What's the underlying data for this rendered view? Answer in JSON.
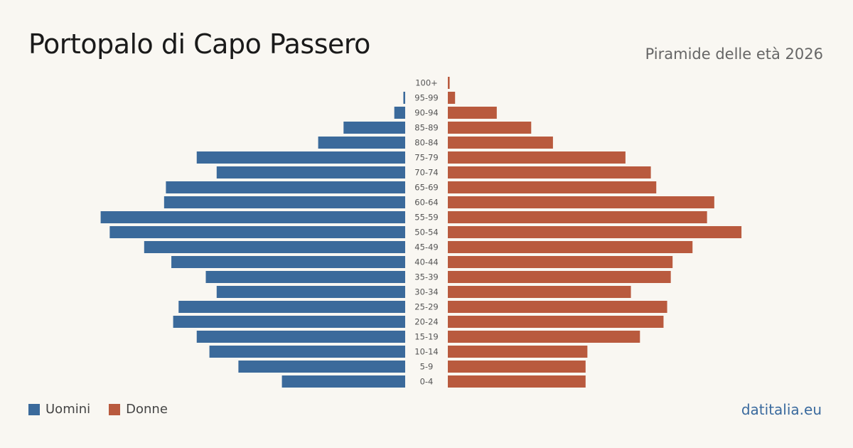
{
  "header": {
    "title": "Portopalo di Capo Passero",
    "subtitle": "Piramide delle età 2026"
  },
  "legend": {
    "men_label": "Uomini",
    "women_label": "Donne"
  },
  "brand": "datitalia.eu",
  "colors": {
    "men": "#3b6a9b",
    "women": "#b95a3e",
    "background": "#f9f7f2"
  },
  "chart_data": {
    "type": "bar",
    "orientation": "horizontal-population-pyramid",
    "categories": [
      "100+",
      "95-99",
      "90-94",
      "85-89",
      "80-84",
      "75-79",
      "70-74",
      "65-69",
      "60-64",
      "55-59",
      "50-54",
      "45-49",
      "40-44",
      "35-39",
      "30-34",
      "25-29",
      "20-24",
      "15-19",
      "10-14",
      "5-9",
      "0-4"
    ],
    "series": [
      {
        "name": "Uomini",
        "values": [
          0,
          1,
          6,
          34,
          48,
          115,
          104,
          132,
          133,
          168,
          163,
          144,
          129,
          110,
          104,
          125,
          128,
          115,
          108,
          92,
          68
        ]
      },
      {
        "name": "Donne",
        "values": [
          1,
          4,
          27,
          46,
          58,
          98,
          112,
          115,
          147,
          143,
          162,
          135,
          124,
          123,
          101,
          121,
          119,
          106,
          77,
          76,
          76
        ]
      }
    ]
  }
}
